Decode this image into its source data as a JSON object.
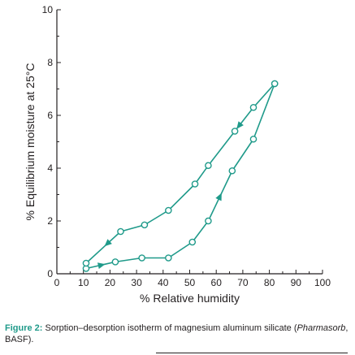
{
  "chart_data": {
    "type": "line",
    "xlabel": "% Relative humidity",
    "ylabel": "% Equilibrium moisture at 25°C",
    "xlim": [
      0,
      100
    ],
    "ylim": [
      0,
      10
    ],
    "xticks": [
      "0",
      "10",
      "20",
      "30",
      "40",
      "50",
      "60",
      "70",
      "80",
      "90",
      "100"
    ],
    "yticks": [
      "0",
      "2",
      "4",
      "6",
      "8",
      "10"
    ],
    "grid": false,
    "legend": "none",
    "color": "#1f9a8a",
    "series": [
      {
        "x": [
          11,
          22,
          32,
          42,
          51,
          57,
          66,
          74,
          82
        ],
        "y": [
          0.2,
          0.45,
          0.6,
          0.6,
          1.2,
          2.0,
          3.9,
          5.1,
          7.2
        ]
      },
      {
        "x": [
          82,
          74,
          67,
          57,
          52,
          42,
          33,
          24,
          11
        ],
        "y": [
          7.2,
          6.3,
          5.4,
          4.1,
          3.4,
          2.4,
          1.85,
          1.6,
          0.4
        ]
      }
    ]
  },
  "caption": {
    "label": "Figure 2:",
    "text_before": " Sorption–desorption isotherm of magnesium aluminum silicate (",
    "product": "Pharmasorb",
    "text_after": ", BASF)."
  }
}
